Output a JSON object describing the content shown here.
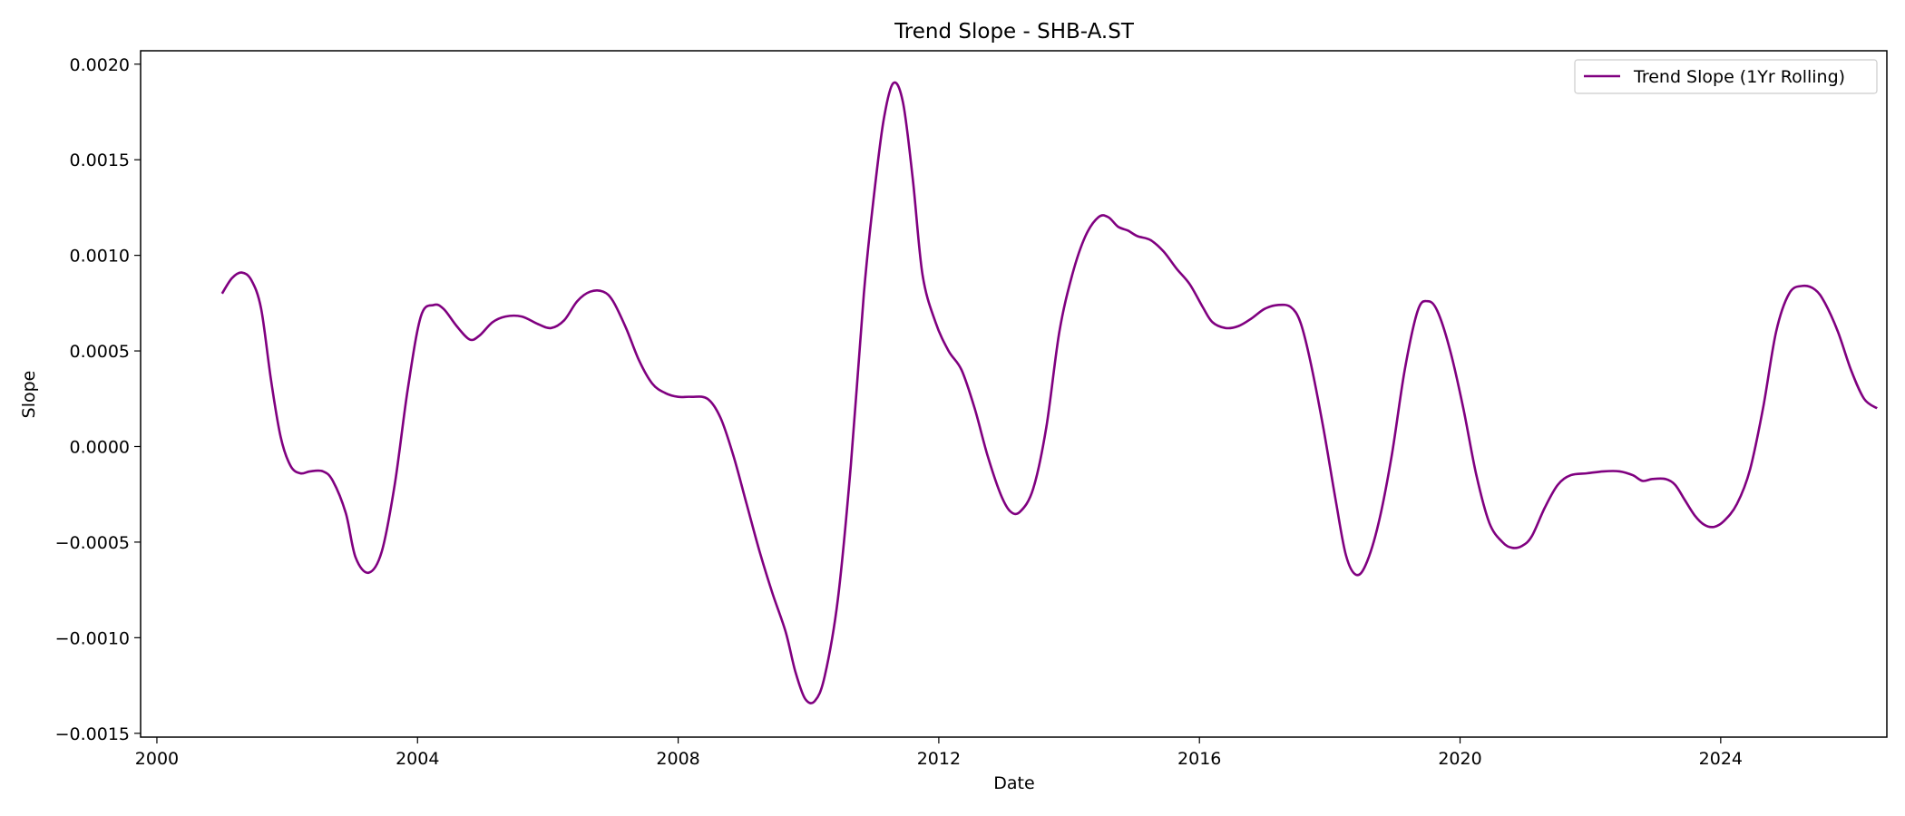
{
  "chart_data": {
    "type": "line",
    "title": "Trend Slope - SHB-A.ST",
    "xlabel": "Date",
    "ylabel": "Slope",
    "x_axis": "date",
    "xlim": [
      1999.75,
      2026.55
    ],
    "ylim": [
      -0.00152,
      0.00207
    ],
    "x_ticks": [
      2000,
      2004,
      2008,
      2012,
      2016,
      2020,
      2024
    ],
    "x_tick_labels": [
      "2000",
      "2004",
      "2008",
      "2012",
      "2016",
      "2020",
      "2024"
    ],
    "y_ticks": [
      -0.0015,
      -0.001,
      -0.0005,
      0.0,
      0.0005,
      0.001,
      0.0015,
      0.002
    ],
    "y_tick_labels": [
      "−0.0015",
      "−0.0010",
      "−0.0005",
      "0.0000",
      "0.0005",
      "0.0010",
      "0.0015",
      "0.0020"
    ],
    "grid": false,
    "legend_position": "top-right",
    "series": [
      {
        "name": "Trend Slope (1Yr Rolling)",
        "color": "#800080",
        "points": [
          [
            2001.0,
            0.0008
          ],
          [
            2001.15,
            0.00088
          ],
          [
            2001.3,
            0.00091
          ],
          [
            2001.45,
            0.00087
          ],
          [
            2001.6,
            0.00072
          ],
          [
            2001.75,
            0.00035
          ],
          [
            2001.9,
            5e-05
          ],
          [
            2002.05,
            -0.0001
          ],
          [
            2002.2,
            -0.00014
          ],
          [
            2002.35,
            -0.00013
          ],
          [
            2002.55,
            -0.00013
          ],
          [
            2002.7,
            -0.00018
          ],
          [
            2002.9,
            -0.00035
          ],
          [
            2003.05,
            -0.00058
          ],
          [
            2003.25,
            -0.00066
          ],
          [
            2003.45,
            -0.00055
          ],
          [
            2003.65,
            -0.0002
          ],
          [
            2003.85,
            0.0003
          ],
          [
            2004.05,
            0.00068
          ],
          [
            2004.25,
            0.00074
          ],
          [
            2004.4,
            0.00072
          ],
          [
            2004.6,
            0.00063
          ],
          [
            2004.8,
            0.00056
          ],
          [
            2004.95,
            0.00058
          ],
          [
            2005.15,
            0.00065
          ],
          [
            2005.35,
            0.00068
          ],
          [
            2005.6,
            0.00068
          ],
          [
            2005.85,
            0.00064
          ],
          [
            2006.05,
            0.00062
          ],
          [
            2006.25,
            0.00066
          ],
          [
            2006.45,
            0.00076
          ],
          [
            2006.65,
            0.00081
          ],
          [
            2006.85,
            0.00081
          ],
          [
            2007.0,
            0.00076
          ],
          [
            2007.2,
            0.00062
          ],
          [
            2007.4,
            0.00045
          ],
          [
            2007.6,
            0.00033
          ],
          [
            2007.8,
            0.00028
          ],
          [
            2008.0,
            0.00026
          ],
          [
            2008.2,
            0.00026
          ],
          [
            2008.45,
            0.00025
          ],
          [
            2008.65,
            0.00015
          ],
          [
            2008.85,
            -5e-05
          ],
          [
            2009.05,
            -0.0003
          ],
          [
            2009.25,
            -0.00055
          ],
          [
            2009.45,
            -0.00077
          ],
          [
            2009.65,
            -0.00097
          ],
          [
            2009.8,
            -0.00118
          ],
          [
            2009.95,
            -0.00132
          ],
          [
            2010.1,
            -0.00133
          ],
          [
            2010.25,
            -0.0012
          ],
          [
            2010.45,
            -0.0008
          ],
          [
            2010.65,
            -0.0001
          ],
          [
            2010.85,
            0.0008
          ],
          [
            2011.0,
            0.0013
          ],
          [
            2011.15,
            0.0017
          ],
          [
            2011.3,
            0.0019
          ],
          [
            2011.45,
            0.0018
          ],
          [
            2011.6,
            0.0014
          ],
          [
            2011.75,
            0.0009
          ],
          [
            2011.95,
            0.00065
          ],
          [
            2012.15,
            0.0005
          ],
          [
            2012.35,
            0.0004
          ],
          [
            2012.55,
            0.0002
          ],
          [
            2012.75,
            -5e-05
          ],
          [
            2012.95,
            -0.00025
          ],
          [
            2013.1,
            -0.00034
          ],
          [
            2013.25,
            -0.00034
          ],
          [
            2013.45,
            -0.00022
          ],
          [
            2013.65,
            0.0001
          ],
          [
            2013.85,
            0.0006
          ],
          [
            2014.05,
            0.0009
          ],
          [
            2014.25,
            0.0011
          ],
          [
            2014.45,
            0.0012
          ],
          [
            2014.6,
            0.0012
          ],
          [
            2014.75,
            0.00115
          ],
          [
            2014.9,
            0.00113
          ],
          [
            2015.05,
            0.0011
          ],
          [
            2015.25,
            0.00108
          ],
          [
            2015.45,
            0.00102
          ],
          [
            2015.65,
            0.00093
          ],
          [
            2015.85,
            0.00085
          ],
          [
            2016.05,
            0.00073
          ],
          [
            2016.2,
            0.00065
          ],
          [
            2016.4,
            0.00062
          ],
          [
            2016.6,
            0.00063
          ],
          [
            2016.8,
            0.00067
          ],
          [
            2017.0,
            0.00072
          ],
          [
            2017.2,
            0.00074
          ],
          [
            2017.4,
            0.00073
          ],
          [
            2017.55,
            0.00065
          ],
          [
            2017.7,
            0.00045
          ],
          [
            2017.9,
            0.0001
          ],
          [
            2018.1,
            -0.0003
          ],
          [
            2018.25,
            -0.00057
          ],
          [
            2018.4,
            -0.00067
          ],
          [
            2018.55,
            -0.00062
          ],
          [
            2018.75,
            -0.0004
          ],
          [
            2018.95,
            -5e-05
          ],
          [
            2019.15,
            0.0004
          ],
          [
            2019.35,
            0.00071
          ],
          [
            2019.5,
            0.00076
          ],
          [
            2019.65,
            0.00071
          ],
          [
            2019.85,
            0.0005
          ],
          [
            2020.05,
            0.0002
          ],
          [
            2020.25,
            -0.00015
          ],
          [
            2020.45,
            -0.0004
          ],
          [
            2020.65,
            -0.0005
          ],
          [
            2020.8,
            -0.00053
          ],
          [
            2020.95,
            -0.00052
          ],
          [
            2021.1,
            -0.00047
          ],
          [
            2021.3,
            -0.00032
          ],
          [
            2021.5,
            -0.0002
          ],
          [
            2021.7,
            -0.00015
          ],
          [
            2021.95,
            -0.00014
          ],
          [
            2022.2,
            -0.00013
          ],
          [
            2022.45,
            -0.00013
          ],
          [
            2022.65,
            -0.00015
          ],
          [
            2022.8,
            -0.00018
          ],
          [
            2022.95,
            -0.00017
          ],
          [
            2023.15,
            -0.00017
          ],
          [
            2023.3,
            -0.0002
          ],
          [
            2023.45,
            -0.00028
          ],
          [
            2023.6,
            -0.00036
          ],
          [
            2023.75,
            -0.00041
          ],
          [
            2023.9,
            -0.00042
          ],
          [
            2024.05,
            -0.00039
          ],
          [
            2024.25,
            -0.0003
          ],
          [
            2024.45,
            -0.00012
          ],
          [
            2024.65,
            0.0002
          ],
          [
            2024.85,
            0.0006
          ],
          [
            2025.05,
            0.0008
          ],
          [
            2025.25,
            0.00084
          ],
          [
            2025.45,
            0.00082
          ],
          [
            2025.6,
            0.00075
          ],
          [
            2025.8,
            0.0006
          ],
          [
            2026.0,
            0.0004
          ],
          [
            2026.2,
            0.00025
          ],
          [
            2026.4,
            0.0002
          ]
        ]
      }
    ]
  }
}
